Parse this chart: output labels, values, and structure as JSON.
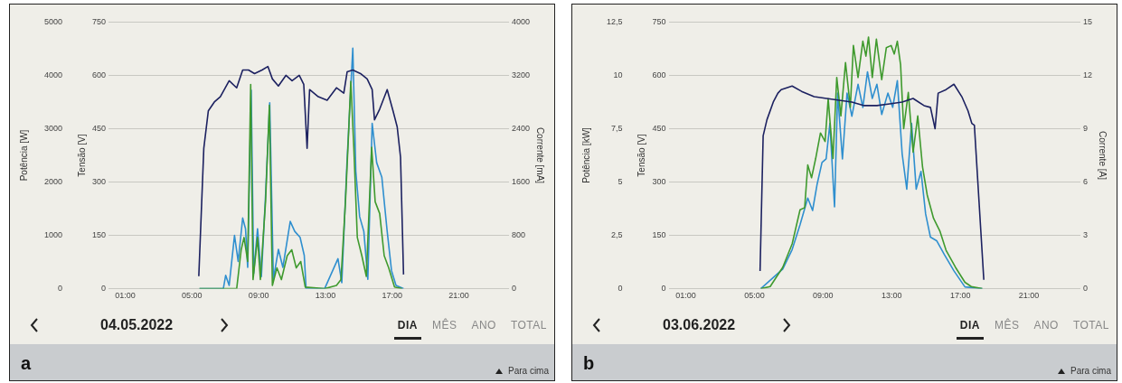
{
  "chart_data": [
    {
      "type": "line",
      "title": "a",
      "ylabel": "Potência [W]",
      "y2label": "Tensão [V]",
      "y3label": "Corrente [mA]",
      "xlim": [
        0,
        24
      ],
      "xticks": [
        {
          "value": 1,
          "label": "01:00"
        },
        {
          "value": 5,
          "label": "05:00"
        },
        {
          "value": 9,
          "label": "09:00"
        },
        {
          "value": 13,
          "label": "13:00"
        },
        {
          "value": 17,
          "label": "17:00"
        },
        {
          "value": 21,
          "label": "21:00"
        }
      ],
      "ylim": [
        0,
        5000
      ],
      "yticks": [
        0,
        1000,
        2000,
        3000,
        4000,
        5000
      ],
      "y2lim": [
        0,
        750
      ],
      "y2ticks": [
        0,
        150,
        300,
        450,
        600,
        750
      ],
      "y3lim": [
        0,
        4000
      ],
      "y3ticks": [
        0,
        800,
        1600,
        2400,
        3200,
        4000
      ],
      "grid": "y",
      "legend": false,
      "annotations": [
        "04.05.2022",
        "DIA",
        "MÊS",
        "ANO",
        "TOTAL",
        "Para cima"
      ],
      "series": [
        {
          "color": "#1c2160",
          "axis": "y2",
          "x": [
            5.41,
            5.71,
            5.98,
            6.34,
            6.7,
            7.23,
            7.68,
            8.04,
            8.39,
            8.75,
            9.2,
            9.55,
            9.82,
            10.18,
            10.63,
            11,
            11.43,
            11.7,
            11.9,
            12.05,
            12.57,
            13.1,
            13.66,
            14.1,
            14.3,
            14.64,
            15.1,
            15.5,
            15.8,
            15.94,
            16.25,
            16.7,
            17.05,
            17.3,
            17.5,
            17.68
          ],
          "values": [
            35,
            395,
            500,
            525,
            540,
            585,
            565,
            615,
            615,
            605,
            615,
            625,
            590,
            570,
            600,
            585,
            600,
            575,
            395,
            560,
            540,
            530,
            565,
            550,
            610,
            615,
            605,
            590,
            560,
            475,
            505,
            560,
            500,
            455,
            370,
            40
          ]
        },
        {
          "color": "#3f9a2e",
          "x": [
            5.45,
            7.68,
            7.95,
            8.12,
            8.34,
            8.52,
            8.66,
            8.93,
            9.1,
            9.41,
            9.64,
            9.82,
            10.09,
            10.36,
            10.71,
            10.98,
            11.25,
            11.52,
            11.79,
            12.95,
            13.66,
            13.93,
            14.2,
            14.38,
            14.52,
            14.7,
            14.91,
            15.18,
            15.45,
            15.77,
            15.98,
            16.25,
            16.52,
            16.79,
            17.14,
            17.59
          ],
          "values": [
            0,
            0,
            730,
            960,
            510,
            3830,
            170,
            960,
            170,
            1630,
            3440,
            60,
            390,
            170,
            620,
            730,
            390,
            510,
            30,
            0,
            60,
            170,
            1630,
            2870,
            3890,
            2650,
            960,
            620,
            230,
            2650,
            1630,
            1410,
            620,
            390,
            30,
            0
          ]
        },
        {
          "color": "#2f8fcf",
          "axis": "y3",
          "x": [
            5.45,
            6.88,
            7.02,
            7.23,
            7.55,
            7.77,
            8.04,
            8.21,
            8.34,
            8.55,
            8.7,
            8.93,
            9.16,
            9.41,
            9.66,
            9.88,
            10.18,
            10.45,
            10.89,
            11.16,
            11.48,
            11.73,
            11.84,
            12.95,
            13.75,
            13.98,
            14.29,
            14.64,
            14.82,
            15.05,
            15.3,
            15.54,
            15.8,
            16.07,
            16.38,
            16.7,
            16.96,
            17.23,
            17.68
          ],
          "values": [
            0,
            0,
            200,
            50,
            800,
            410,
            1060,
            900,
            320,
            2980,
            230,
            900,
            180,
            1400,
            2790,
            140,
            590,
            320,
            1010,
            860,
            770,
            500,
            0,
            0,
            450,
            90,
            1890,
            3610,
            1760,
            1080,
            860,
            140,
            2480,
            1890,
            1670,
            860,
            270,
            50,
            0
          ]
        }
      ]
    },
    {
      "type": "line",
      "title": "b",
      "ylabel": "Potência [kW]",
      "y2label": "Tensão [V]",
      "y3label": "Corrente [A]",
      "xlim": [
        0,
        24
      ],
      "xticks": [
        {
          "value": 1,
          "label": "01:00"
        },
        {
          "value": 5,
          "label": "05:00"
        },
        {
          "value": 9,
          "label": "09:00"
        },
        {
          "value": 13,
          "label": "13:00"
        },
        {
          "value": 17,
          "label": "17:00"
        },
        {
          "value": 21,
          "label": "21:00"
        }
      ],
      "ylim": [
        0,
        12.5
      ],
      "yticks": [
        0,
        {
          "value": 2.5,
          "label": "2,5"
        },
        5,
        {
          "value": 7.5,
          "label": "7,5"
        },
        10,
        {
          "value": 12.5,
          "label": "12,5"
        }
      ],
      "y2lim": [
        0,
        750
      ],
      "y2ticks": [
        0,
        150,
        300,
        450,
        600,
        750
      ],
      "y3lim": [
        0,
        15
      ],
      "y3ticks": [
        0,
        3,
        6,
        9,
        12,
        15
      ],
      "grid": "y",
      "legend": false,
      "annotations": [
        "03.06.2022",
        "DIA",
        "MÊS",
        "ANO",
        "TOTAL",
        "Para cima"
      ],
      "series": [
        {
          "color": "#1c2160",
          "axis": "y2",
          "x": [
            5.33,
            5.51,
            5.73,
            6.1,
            6.37,
            6.56,
            7.2,
            7.75,
            8.48,
            9.21,
            9.95,
            10.68,
            11.41,
            12.14,
            12.88,
            13.61,
            14.25,
            14.89,
            15.26,
            15.53,
            15.71,
            16.17,
            16.63,
            17.09,
            17.45,
            17.67,
            17.82,
            18.37
          ],
          "values": [
            50,
            430,
            475,
            525,
            550,
            560,
            570,
            555,
            540,
            535,
            530,
            525,
            515,
            515,
            520,
            525,
            535,
            515,
            510,
            450,
            550,
            560,
            575,
            540,
            500,
            465,
            460,
            25
          ]
        },
        {
          "color": "#3f9a2e",
          "x": [
            5.37,
            5.92,
            6.65,
            7.2,
            7.66,
            7.93,
            8.11,
            8.33,
            8.57,
            8.85,
            9.12,
            9.3,
            9.58,
            9.8,
            10.04,
            10.31,
            10.59,
            10.77,
            11.04,
            11.32,
            11.5,
            11.65,
            11.87,
            12.11,
            12.42,
            12.69,
            12.97,
            13.15,
            13.33,
            13.52,
            13.7,
            13.97,
            14.25,
            14.52,
            14.8,
            15.07,
            15.44,
            15.81,
            16.17,
            16.72,
            17.27,
            17.64,
            18.28
          ],
          "values": [
            0,
            0.1,
            1,
            2.1,
            3.7,
            3.8,
            5.8,
            5.2,
            6.1,
            7.3,
            6.9,
            8.9,
            6.1,
            9.9,
            8.1,
            10.6,
            8.5,
            11.4,
            9.9,
            11.6,
            10.9,
            11.8,
            9.9,
            11.7,
            9.8,
            11.3,
            11.4,
            11,
            11.6,
            10.5,
            7.5,
            9.2,
            6.4,
            8.1,
            5.7,
            4.4,
            3.3,
            2.7,
            1.8,
            1,
            0.3,
            0.1,
            0
          ]
        },
        {
          "color": "#2f8fcf",
          "axis": "y3",
          "x": [
            5.37,
            6.65,
            7.2,
            7.66,
            8.11,
            8.39,
            8.66,
            8.94,
            9.18,
            9.4,
            9.67,
            9.85,
            10.13,
            10.4,
            10.68,
            11.04,
            11.32,
            11.59,
            11.87,
            12.14,
            12.42,
            12.78,
            13.06,
            13.33,
            13.61,
            13.88,
            14.16,
            14.43,
            14.71,
            14.98,
            15.26,
            15.62,
            16.08,
            16.63,
            17.27,
            18.28
          ],
          "values": [
            0,
            1.1,
            2.2,
            3.6,
            5.1,
            4.4,
            5.9,
            7.1,
            7.3,
            9.3,
            4.6,
            11,
            7.3,
            11,
            9.7,
            11.5,
            10.2,
            12.2,
            10.7,
            11.5,
            9.8,
            11,
            10.2,
            11.7,
            7.6,
            5.6,
            9.3,
            5.6,
            6.6,
            4.2,
            2.9,
            2.7,
            1.9,
            1,
            0.1,
            0
          ]
        }
      ]
    }
  ]
}
